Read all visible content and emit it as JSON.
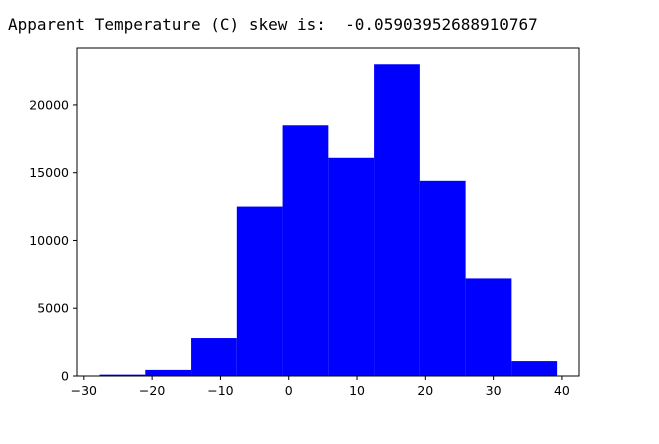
{
  "output": {
    "prefix": "Apparent Temperature (C) skew is:",
    "skew_value": "-0.05903952688910767"
  },
  "chart_data": {
    "type": "bar",
    "title": "",
    "xlabel": "",
    "ylabel": "",
    "bar_color": "#0000ff",
    "bin_edges": [
      -27.7,
      -21.0,
      -14.3,
      -7.6,
      -0.9,
      5.8,
      12.5,
      19.2,
      25.9,
      32.6,
      39.3
    ],
    "values": [
      100,
      450,
      2800,
      12500,
      18500,
      16100,
      23000,
      14400,
      7200,
      1100
    ],
    "xlim": [
      -31.0,
      42.5
    ],
    "ylim": [
      0,
      24200
    ],
    "xticks": [
      -30,
      -20,
      -10,
      0,
      10,
      20,
      30,
      40
    ],
    "xtick_labels": [
      "−30",
      "−20",
      "−10",
      "0",
      "10",
      "20",
      "30",
      "40"
    ],
    "yticks": [
      0,
      5000,
      10000,
      15000,
      20000
    ],
    "ytick_labels": [
      "0",
      "5000",
      "10000",
      "15000",
      "20000"
    ],
    "grid": false,
    "legend": "none"
  }
}
